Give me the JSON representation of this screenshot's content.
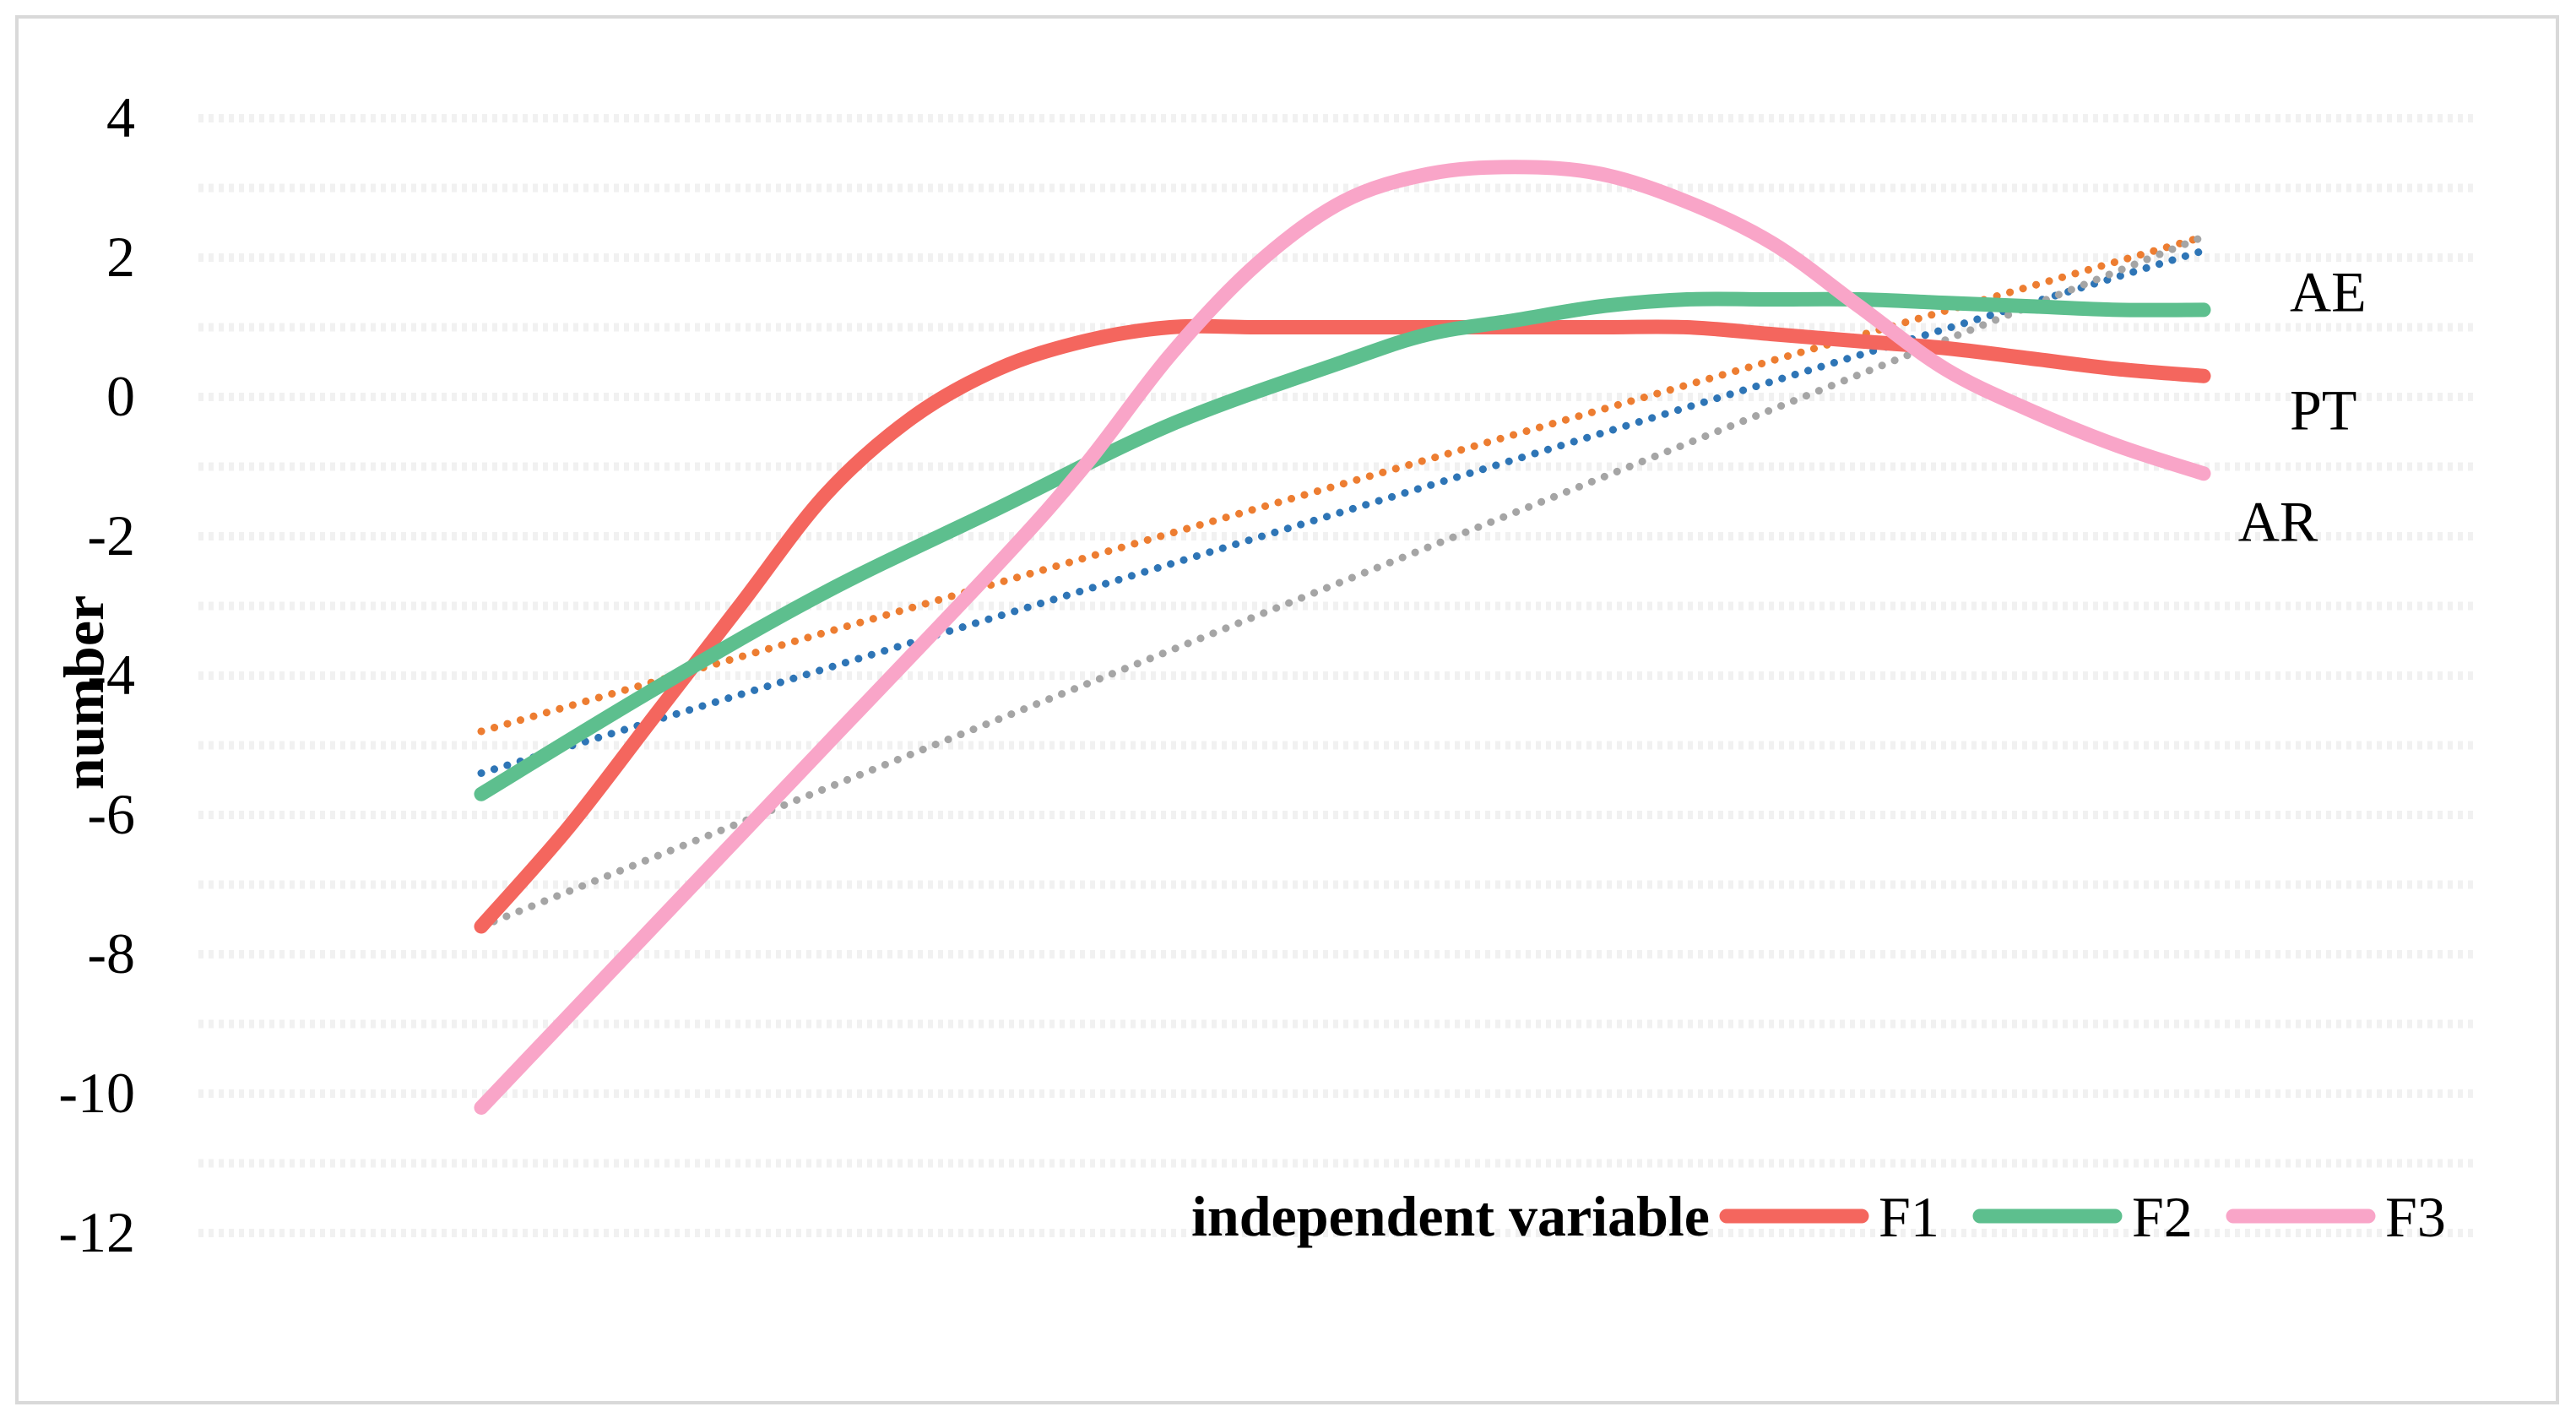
{
  "chart_data": {
    "type": "line",
    "xlabel": "independent variable",
    "ylabel": "number",
    "ylim": [
      -12,
      4
    ],
    "y_ticks": [
      4,
      2,
      0,
      -2,
      -4,
      -6,
      -8,
      -10,
      -12
    ],
    "y_tick_labels": [
      "4",
      "2",
      "0",
      "-2",
      "-4",
      "-6",
      "-8",
      "-10",
      "-12"
    ],
    "grid": "light dashed horizontal bands",
    "legend_position": "bottom-right",
    "series": [
      {
        "name": "F1",
        "color": "#f4665e",
        "style": "solid",
        "x": [
          0,
          0.05,
          0.1,
          0.15,
          0.2,
          0.25,
          0.3,
          0.35,
          0.4,
          0.45,
          0.5,
          0.55,
          0.6,
          0.65,
          0.7,
          0.75,
          0.8,
          0.85,
          0.9,
          0.95,
          1.0
        ],
        "y": [
          -7.6,
          -6.2,
          -4.6,
          -3.0,
          -1.4,
          -0.3,
          0.4,
          0.8,
          1.0,
          1.0,
          1.0,
          1.0,
          1.0,
          1.0,
          1.0,
          0.9,
          0.8,
          0.7,
          0.55,
          0.4,
          0.3
        ]
      },
      {
        "name": "F2",
        "color": "#5dbf8e",
        "style": "solid",
        "x": [
          0,
          0.1,
          0.2,
          0.3,
          0.4,
          0.5,
          0.55,
          0.6,
          0.65,
          0.7,
          0.75,
          0.8,
          0.85,
          0.9,
          0.95,
          1.0
        ],
        "y": [
          -5.7,
          -4.2,
          -2.8,
          -1.6,
          -0.4,
          0.5,
          0.9,
          1.1,
          1.3,
          1.4,
          1.4,
          1.4,
          1.35,
          1.3,
          1.25,
          1.25
        ]
      },
      {
        "name": "F3",
        "color": "#f9a5c8",
        "style": "solid",
        "x": [
          0,
          0.1,
          0.2,
          0.3,
          0.35,
          0.4,
          0.45,
          0.5,
          0.55,
          0.6,
          0.65,
          0.7,
          0.75,
          0.8,
          0.85,
          0.9,
          0.95,
          1.0
        ],
        "y": [
          -10.2,
          -7.6,
          -5.0,
          -2.4,
          -1.0,
          0.6,
          1.9,
          2.8,
          3.2,
          3.3,
          3.2,
          2.8,
          2.2,
          1.3,
          0.4,
          -0.2,
          -0.7,
          -1.1
        ]
      },
      {
        "name": "",
        "color": "#ed7d31",
        "style": "dotted",
        "x": [
          0,
          1.0
        ],
        "y": [
          -4.8,
          2.3
        ]
      },
      {
        "name": "",
        "color": "#2e75b6",
        "style": "dotted",
        "x": [
          0,
          1.0
        ],
        "y": [
          -5.4,
          2.1
        ]
      },
      {
        "name": "",
        "color": "#a5a5a5",
        "style": "dotted",
        "x": [
          0,
          1.0
        ],
        "y": [
          -7.6,
          2.3
        ]
      }
    ],
    "annotations": [
      {
        "text": "AE",
        "x": 1.05,
        "y": 1.5
      },
      {
        "text": "PT",
        "x": 1.05,
        "y": -0.2
      },
      {
        "text": "AR",
        "x": 1.02,
        "y": -1.8
      }
    ]
  }
}
